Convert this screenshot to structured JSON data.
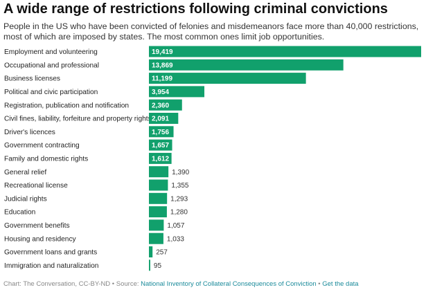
{
  "header": {
    "title": "A wide range of restrictions following criminal convictions",
    "subtitle": "People in the US who have been convicted of felonies and misdemeanors face more than 40,000 restrictions, most of which are imposed by states. The most common ones limit job opportunities."
  },
  "footer": {
    "credit": "Chart: The Conversation, CC-BY-ND",
    "sep1": " • Source: ",
    "source_link": "National Inventory of Collateral Consequences of Conviction",
    "sep2": " • ",
    "data_link": "Get the data"
  },
  "colors": {
    "bar": "#11a06c",
    "label_inside": "#ffffff",
    "label_outside": "#333333"
  },
  "chart_data": {
    "type": "bar",
    "orientation": "horizontal",
    "categories": [
      "Employment and volunteering",
      "Occupational and professional",
      "Business licenses",
      "Political and civic participation",
      "Registration, publication and notification",
      "Civil fines, liability, forfeiture and property rights",
      "Driver's licences",
      "Government contracting",
      "Family and domestic rights",
      "General relief",
      "Recreational license",
      "Judicial rights",
      "Education",
      "Government benefits",
      "Housing and residency",
      "Government loans and grants",
      "Immigration and naturalization"
    ],
    "values": [
      19419,
      13869,
      11199,
      3954,
      2360,
      2091,
      1756,
      1657,
      1612,
      1390,
      1355,
      1293,
      1280,
      1057,
      1033,
      257,
      95
    ],
    "value_labels": [
      "19,419",
      "13,869",
      "11,199",
      "3,954",
      "2,360",
      "2,091",
      "1,756",
      "1,657",
      "1,612",
      "1,390",
      "1,355",
      "1,293",
      "1,280",
      "1,057",
      "1,033",
      "257",
      "95"
    ],
    "xlim": [
      0,
      19419
    ],
    "grid": false,
    "legend": "none"
  }
}
